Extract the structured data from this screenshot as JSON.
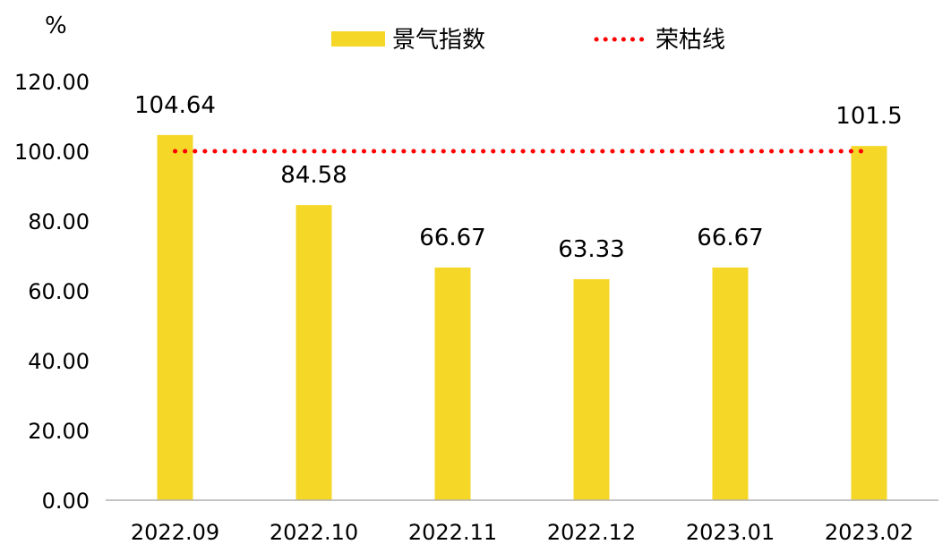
{
  "chart_data": {
    "type": "bar",
    "y_unit": "%",
    "categories": [
      "2022.09",
      "2022.10",
      "2022.11",
      "2022.12",
      "2023.01",
      "2023.02"
    ],
    "series": [
      {
        "name": "景气指数",
        "type": "bar",
        "color": "#F5D728",
        "values": [
          104.64,
          84.58,
          66.67,
          63.33,
          66.67,
          101.5
        ],
        "value_labels": [
          "104.64",
          "84.58",
          "66.67",
          "63.33",
          "66.67",
          "101.5"
        ]
      },
      {
        "name": "荣枯线",
        "type": "line",
        "style": "dotted",
        "color": "#FF0000",
        "values": [
          100,
          100,
          100,
          100,
          100,
          100
        ]
      }
    ],
    "y_ticks": [
      "0.00",
      "20.00",
      "40.00",
      "60.00",
      "80.00",
      "100.00",
      "120.00"
    ],
    "ylim": [
      0,
      120
    ],
    "grid": false,
    "legend_position": "top-center"
  }
}
